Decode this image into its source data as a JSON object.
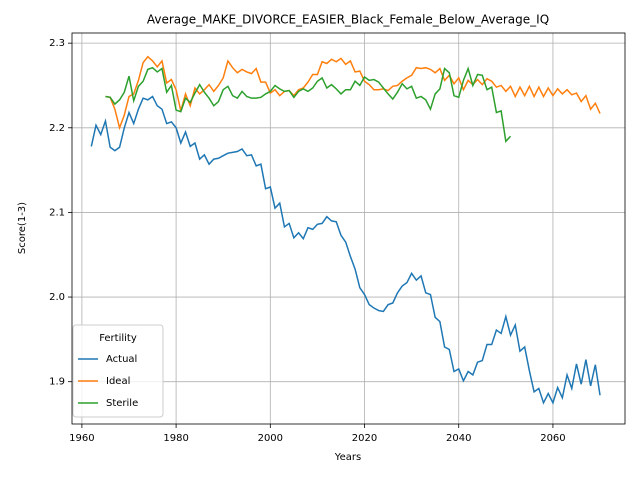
{
  "chart_data": {
    "type": "line",
    "title": "Average_MAKE_DIVORCE_EASIER_Black_Female_Below_Average_IQ",
    "xlabel": "Years",
    "ylabel": "Score(1-3)",
    "legend_title": "Fertility",
    "legend": "lower left",
    "grid": true,
    "xlim": [
      1957.9,
      2075.3
    ],
    "xticks": [
      1960,
      1980,
      2000,
      2020,
      2040,
      2060
    ],
    "ylim": [
      1.85,
      2.312
    ],
    "yticks": [
      1.9,
      {
        "value": 2,
        "label": "2.0"
      },
      2.1,
      2.2,
      2.3
    ],
    "x": [
      1962,
      1963,
      1964,
      1965,
      1966,
      1967,
      1968,
      1969,
      1970,
      1971,
      1972,
      1973,
      1974,
      1975,
      1976,
      1977,
      1978,
      1979,
      1980,
      1981,
      1982,
      1983,
      1984,
      1985,
      1986,
      1987,
      1988,
      1989,
      1990,
      1991,
      1992,
      1993,
      1994,
      1995,
      1996,
      1997,
      1998,
      1999,
      2000,
      2001,
      2002,
      2003,
      2004,
      2005,
      2006,
      2007,
      2008,
      2009,
      2010,
      2011,
      2012,
      2013,
      2014,
      2015,
      2016,
      2017,
      2018,
      2019,
      2020,
      2021,
      2022,
      2023,
      2024,
      2025,
      2026,
      2027,
      2028,
      2029,
      2030,
      2031,
      2032,
      2033,
      2034,
      2035,
      2036,
      2037,
      2038,
      2039,
      2040,
      2041,
      2042,
      2043,
      2044,
      2045,
      2046,
      2047,
      2048,
      2049,
      2050,
      2051,
      2052,
      2053,
      2054,
      2055,
      2056,
      2057,
      2058,
      2059,
      2060,
      2061,
      2062,
      2063,
      2064,
      2065,
      2066,
      2067,
      2068,
      2069,
      2070
    ],
    "series": [
      {
        "name": "Actual",
        "color": "#1f77b4",
        "values": [
          2.178,
          2.203,
          2.192,
          2.208,
          2.177,
          2.173,
          2.177,
          2.2,
          2.218,
          2.205,
          2.222,
          2.235,
          2.233,
          2.237,
          2.226,
          2.222,
          2.205,
          2.207,
          2.2,
          2.182,
          2.195,
          2.178,
          2.182,
          2.163,
          2.168,
          2.157,
          2.163,
          2.164,
          2.167,
          2.17,
          2.171,
          2.172,
          2.175,
          2.167,
          2.168,
          2.155,
          2.157,
          2.128,
          2.13,
          2.105,
          2.111,
          2.083,
          2.087,
          2.07,
          2.076,
          2.069,
          2.082,
          2.08,
          2.086,
          2.087,
          2.095,
          2.09,
          2.089,
          2.073,
          2.065,
          2.048,
          2.033,
          2.011,
          2.003,
          1.991,
          1.987,
          1.984,
          1.983,
          1.991,
          1.993,
          2.005,
          2.013,
          2.017,
          2.028,
          2.02,
          2.025,
          2.005,
          2.003,
          1.976,
          1.971,
          1.941,
          1.938,
          1.912,
          1.915,
          1.901,
          1.912,
          1.908,
          1.923,
          1.925,
          1.944,
          1.944,
          1.961,
          1.957,
          1.977,
          1.955,
          1.967,
          1.936,
          1.941,
          1.913,
          1.888,
          1.892,
          1.875,
          1.886,
          1.875,
          1.893,
          1.881,
          1.908,
          1.892,
          1.921,
          1.897,
          1.926,
          1.895,
          1.92,
          1.884
        ]
      },
      {
        "name": "Ideal",
        "color": "#ff7f0e",
        "values": [
          null,
          null,
          null,
          2.237,
          2.236,
          2.222,
          2.2,
          2.215,
          2.237,
          2.24,
          2.256,
          2.277,
          2.284,
          2.279,
          2.272,
          2.279,
          2.253,
          2.257,
          2.245,
          2.22,
          2.24,
          2.226,
          2.247,
          2.24,
          2.245,
          2.251,
          2.243,
          2.25,
          2.259,
          2.279,
          2.271,
          2.265,
          2.269,
          2.266,
          2.264,
          2.27,
          2.254,
          2.254,
          2.241,
          2.245,
          2.238,
          2.243,
          2.244,
          2.238,
          2.245,
          2.247,
          2.254,
          2.263,
          2.263,
          2.278,
          2.276,
          2.281,
          2.278,
          2.282,
          2.275,
          2.279,
          2.266,
          2.267,
          2.255,
          2.251,
          2.245,
          2.245,
          2.246,
          2.244,
          2.249,
          2.25,
          2.255,
          2.259,
          2.262,
          2.271,
          2.27,
          2.271,
          2.269,
          2.265,
          2.27,
          2.256,
          2.262,
          2.252,
          2.259,
          2.245,
          2.256,
          2.251,
          2.257,
          2.251,
          2.258,
          2.255,
          2.248,
          2.25,
          2.243,
          2.249,
          2.237,
          2.248,
          2.238,
          2.249,
          2.237,
          2.248,
          2.237,
          2.247,
          2.238,
          2.246,
          2.24,
          2.245,
          2.239,
          2.241,
          2.231,
          2.238,
          2.222,
          2.229,
          2.217
        ]
      },
      {
        "name": "Sterile",
        "color": "#2ca02c",
        "values": [
          null,
          null,
          null,
          2.237,
          2.236,
          2.228,
          2.233,
          2.242,
          2.261,
          2.232,
          2.249,
          2.255,
          2.269,
          2.271,
          2.266,
          2.27,
          2.242,
          2.25,
          2.221,
          2.219,
          2.235,
          2.23,
          2.241,
          2.251,
          2.242,
          2.235,
          2.226,
          2.231,
          2.245,
          2.249,
          2.238,
          2.235,
          2.243,
          2.237,
          2.235,
          2.235,
          2.236,
          2.24,
          2.243,
          2.25,
          2.246,
          2.243,
          2.244,
          2.236,
          2.243,
          2.246,
          2.243,
          2.247,
          2.255,
          2.259,
          2.247,
          2.251,
          2.246,
          2.24,
          2.245,
          2.245,
          2.255,
          2.25,
          2.26,
          2.256,
          2.257,
          2.254,
          2.247,
          2.24,
          2.234,
          2.242,
          2.252,
          2.246,
          2.249,
          2.235,
          2.237,
          2.233,
          2.222,
          2.24,
          2.246,
          2.27,
          2.265,
          2.238,
          2.236,
          2.256,
          2.27,
          2.25,
          2.263,
          2.262,
          2.245,
          2.248,
          2.218,
          2.22,
          2.184,
          2.19,
          null,
          null,
          null,
          null,
          null,
          null,
          null,
          null,
          null,
          null,
          null,
          null,
          null,
          null,
          null,
          null,
          null,
          null,
          null
        ]
      }
    ]
  }
}
